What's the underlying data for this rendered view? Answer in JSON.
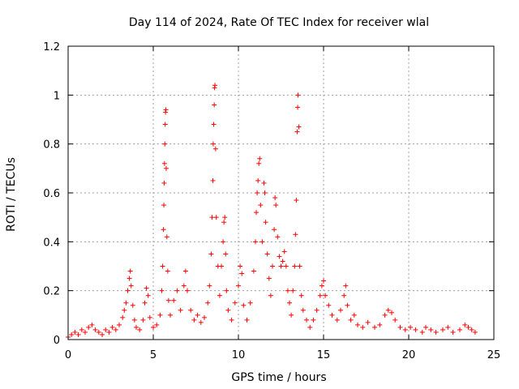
{
  "chart_data": {
    "type": "scatter",
    "title": "Day 114 of 2024, Rate Of TEC Index for receiver wlal",
    "xlabel": "GPS time / hours",
    "ylabel": "ROTI / TECUs",
    "xlim": [
      0,
      25
    ],
    "ylim": [
      0,
      1.2
    ],
    "xticks": [
      0,
      5,
      10,
      15,
      20,
      25
    ],
    "yticks": [
      0,
      0.2,
      0.4,
      0.6,
      0.8,
      1.0,
      1.2
    ],
    "xtick_labels": [
      "0",
      "5",
      "10",
      "15",
      "20",
      "25"
    ],
    "ytick_labels": [
      "0",
      "0.2",
      "0.4",
      "0.6",
      "0.8",
      "1",
      "1.2"
    ],
    "grid": true,
    "marker": "+",
    "color": "#ff0000",
    "series": [
      {
        "points": [
          [
            0.0,
            0.01
          ],
          [
            0.2,
            0.02
          ],
          [
            0.4,
            0.03
          ],
          [
            0.6,
            0.02
          ],
          [
            0.8,
            0.04
          ],
          [
            1.0,
            0.03
          ],
          [
            1.2,
            0.05
          ],
          [
            1.4,
            0.06
          ],
          [
            1.6,
            0.04
          ],
          [
            1.8,
            0.03
          ],
          [
            2.0,
            0.02
          ],
          [
            2.2,
            0.04
          ],
          [
            2.4,
            0.03
          ],
          [
            2.6,
            0.05
          ],
          [
            2.8,
            0.04
          ],
          [
            3.0,
            0.06
          ],
          [
            3.2,
            0.09
          ],
          [
            3.3,
            0.12
          ],
          [
            3.4,
            0.15
          ],
          [
            3.5,
            0.2
          ],
          [
            3.6,
            0.25
          ],
          [
            3.65,
            0.28
          ],
          [
            3.7,
            0.22
          ],
          [
            3.8,
            0.14
          ],
          [
            3.9,
            0.08
          ],
          [
            4.0,
            0.05
          ],
          [
            4.2,
            0.04
          ],
          [
            4.4,
            0.08
          ],
          [
            4.5,
            0.15
          ],
          [
            4.6,
            0.21
          ],
          [
            4.7,
            0.18
          ],
          [
            4.8,
            0.09
          ],
          [
            5.0,
            0.05
          ],
          [
            5.2,
            0.06
          ],
          [
            5.4,
            0.1
          ],
          [
            5.5,
            0.2
          ],
          [
            5.55,
            0.3
          ],
          [
            5.6,
            0.45
          ],
          [
            5.62,
            0.55
          ],
          [
            5.64,
            0.64
          ],
          [
            5.66,
            0.72
          ],
          [
            5.68,
            0.8
          ],
          [
            5.7,
            0.88
          ],
          [
            5.72,
            0.93
          ],
          [
            5.74,
            0.94
          ],
          [
            5.76,
            0.7
          ],
          [
            5.8,
            0.42
          ],
          [
            5.85,
            0.28
          ],
          [
            5.9,
            0.16
          ],
          [
            6.0,
            0.1
          ],
          [
            6.2,
            0.16
          ],
          [
            6.4,
            0.2
          ],
          [
            6.6,
            0.12
          ],
          [
            6.8,
            0.22
          ],
          [
            6.9,
            0.28
          ],
          [
            7.0,
            0.2
          ],
          [
            7.2,
            0.12
          ],
          [
            7.4,
            0.08
          ],
          [
            7.6,
            0.1
          ],
          [
            7.8,
            0.07
          ],
          [
            8.0,
            0.09
          ],
          [
            8.2,
            0.15
          ],
          [
            8.3,
            0.22
          ],
          [
            8.4,
            0.35
          ],
          [
            8.45,
            0.5
          ],
          [
            8.5,
            0.65
          ],
          [
            8.52,
            0.8
          ],
          [
            8.55,
            0.88
          ],
          [
            8.58,
            0.96
          ],
          [
            8.6,
            1.03
          ],
          [
            8.62,
            1.04
          ],
          [
            8.66,
            0.78
          ],
          [
            8.7,
            0.5
          ],
          [
            8.8,
            0.3
          ],
          [
            8.9,
            0.18
          ],
          [
            9.0,
            0.3
          ],
          [
            9.1,
            0.4
          ],
          [
            9.15,
            0.48
          ],
          [
            9.2,
            0.5
          ],
          [
            9.25,
            0.35
          ],
          [
            9.3,
            0.2
          ],
          [
            9.4,
            0.12
          ],
          [
            9.6,
            0.08
          ],
          [
            9.8,
            0.15
          ],
          [
            10.0,
            0.22
          ],
          [
            10.1,
            0.3
          ],
          [
            10.2,
            0.27
          ],
          [
            10.3,
            0.14
          ],
          [
            10.5,
            0.08
          ],
          [
            10.7,
            0.15
          ],
          [
            10.9,
            0.28
          ],
          [
            11.0,
            0.4
          ],
          [
            11.05,
            0.52
          ],
          [
            11.1,
            0.6
          ],
          [
            11.15,
            0.65
          ],
          [
            11.2,
            0.72
          ],
          [
            11.25,
            0.74
          ],
          [
            11.3,
            0.55
          ],
          [
            11.4,
            0.4
          ],
          [
            11.5,
            0.64
          ],
          [
            11.55,
            0.6
          ],
          [
            11.6,
            0.48
          ],
          [
            11.7,
            0.35
          ],
          [
            11.8,
            0.25
          ],
          [
            11.9,
            0.18
          ],
          [
            12.0,
            0.3
          ],
          [
            12.1,
            0.45
          ],
          [
            12.15,
            0.58
          ],
          [
            12.2,
            0.55
          ],
          [
            12.3,
            0.42
          ],
          [
            12.4,
            0.34
          ],
          [
            12.5,
            0.3
          ],
          [
            12.6,
            0.32
          ],
          [
            12.7,
            0.36
          ],
          [
            12.8,
            0.3
          ],
          [
            12.9,
            0.2
          ],
          [
            13.0,
            0.15
          ],
          [
            13.1,
            0.1
          ],
          [
            13.2,
            0.2
          ],
          [
            13.3,
            0.3
          ],
          [
            13.35,
            0.43
          ],
          [
            13.4,
            0.57
          ],
          [
            13.45,
            0.85
          ],
          [
            13.48,
            0.95
          ],
          [
            13.5,
            1.0
          ],
          [
            13.55,
            0.87
          ],
          [
            13.6,
            0.3
          ],
          [
            13.7,
            0.18
          ],
          [
            13.8,
            0.12
          ],
          [
            14.0,
            0.08
          ],
          [
            14.2,
            0.05
          ],
          [
            14.4,
            0.08
          ],
          [
            14.6,
            0.12
          ],
          [
            14.8,
            0.18
          ],
          [
            14.9,
            0.22
          ],
          [
            15.0,
            0.24
          ],
          [
            15.1,
            0.18
          ],
          [
            15.3,
            0.14
          ],
          [
            15.5,
            0.1
          ],
          [
            15.8,
            0.08
          ],
          [
            16.0,
            0.12
          ],
          [
            16.2,
            0.18
          ],
          [
            16.3,
            0.22
          ],
          [
            16.4,
            0.14
          ],
          [
            16.6,
            0.08
          ],
          [
            16.8,
            0.1
          ],
          [
            17.0,
            0.06
          ],
          [
            17.3,
            0.05
          ],
          [
            17.6,
            0.07
          ],
          [
            18.0,
            0.05
          ],
          [
            18.3,
            0.06
          ],
          [
            18.6,
            0.1
          ],
          [
            18.8,
            0.12
          ],
          [
            19.0,
            0.11
          ],
          [
            19.2,
            0.08
          ],
          [
            19.5,
            0.05
          ],
          [
            19.8,
            0.04
          ],
          [
            20.1,
            0.05
          ],
          [
            20.4,
            0.04
          ],
          [
            20.8,
            0.03
          ],
          [
            21.0,
            0.05
          ],
          [
            21.3,
            0.04
          ],
          [
            21.6,
            0.03
          ],
          [
            22.0,
            0.04
          ],
          [
            22.3,
            0.05
          ],
          [
            22.6,
            0.03
          ],
          [
            23.0,
            0.04
          ],
          [
            23.3,
            0.06
          ],
          [
            23.5,
            0.05
          ],
          [
            23.7,
            0.04
          ],
          [
            23.9,
            0.03
          ]
        ]
      }
    ]
  }
}
